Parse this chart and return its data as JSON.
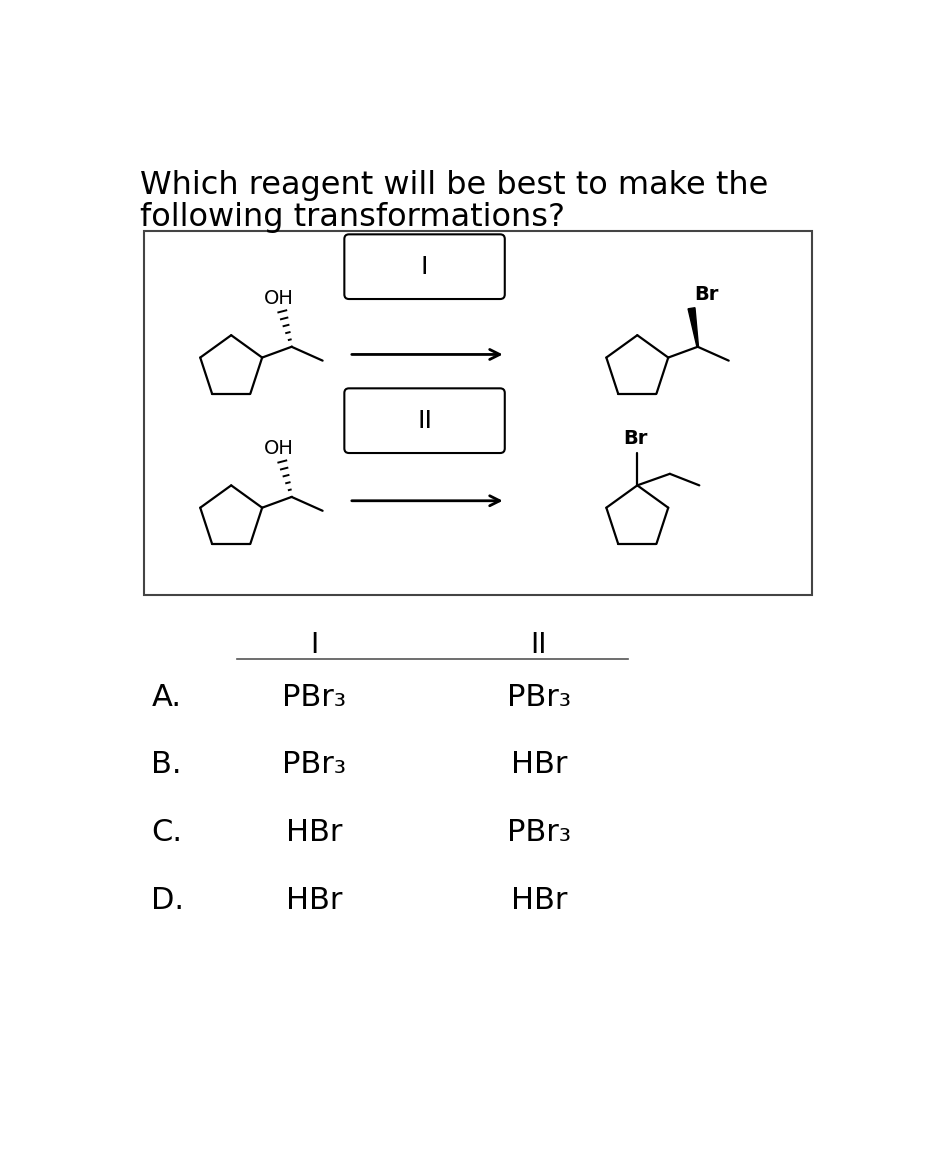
{
  "title_line1": "Which reagent will be best to make the",
  "title_line2": "following transformations?",
  "title_fontsize": 23,
  "box_label_I": "I",
  "box_label_II": "II",
  "options": [
    {
      "letter": "A.",
      "col1": "PBr₃",
      "col2": "PBr₃"
    },
    {
      "letter": "B.",
      "col1": "PBr₃",
      "col2": "HBr"
    },
    {
      "letter": "C.",
      "col1": "HBr",
      "col2": "PBr₃"
    },
    {
      "letter": "D.",
      "col1": "HBr",
      "col2": "HBr"
    }
  ],
  "col_header_I": "I",
  "col_header_II": "II",
  "background": "#ffffff",
  "text_color": "#000000",
  "option_fontsize": 22,
  "header_fontsize": 20,
  "letter_fontsize": 22
}
